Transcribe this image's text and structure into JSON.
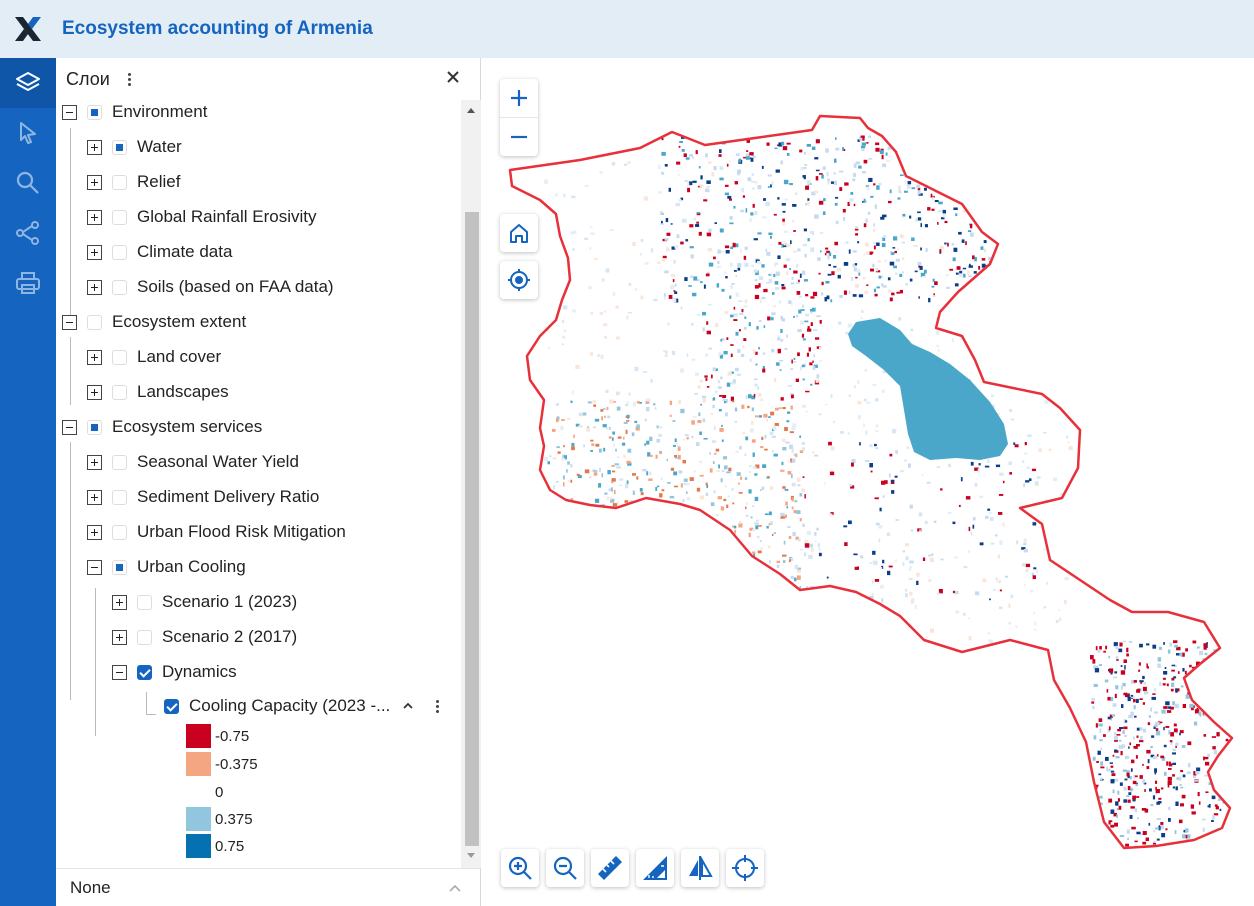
{
  "app": {
    "title": "Ecosystem accounting of Armenia"
  },
  "toolbar": {
    "items": [
      {
        "name": "layers",
        "active": true
      },
      {
        "name": "select",
        "active": false
      },
      {
        "name": "search",
        "active": false
      },
      {
        "name": "share",
        "active": false
      },
      {
        "name": "print",
        "active": false
      }
    ]
  },
  "panel": {
    "title": "Слои",
    "footer": "None",
    "tree": [
      {
        "label": "Environment",
        "level": 0,
        "expanded": true,
        "state": "partial"
      },
      {
        "label": "Water",
        "level": 1,
        "expanded": false,
        "state": "partial"
      },
      {
        "label": "Relief",
        "level": 1,
        "expanded": false,
        "state": "unchecked"
      },
      {
        "label": "Global Rainfall Erosivity",
        "level": 1,
        "expanded": false,
        "state": "unchecked"
      },
      {
        "label": "Climate data",
        "level": 1,
        "expanded": false,
        "state": "unchecked"
      },
      {
        "label": "Soils (based on FAA data)",
        "level": 1,
        "expanded": false,
        "state": "unchecked"
      },
      {
        "label": "Ecosystem extent",
        "level": 0,
        "expanded": true,
        "state": "unchecked"
      },
      {
        "label": "Land cover",
        "level": 1,
        "expanded": false,
        "state": "unchecked"
      },
      {
        "label": "Landscapes",
        "level": 1,
        "expanded": false,
        "state": "unchecked"
      },
      {
        "label": "Ecosystem services",
        "level": 0,
        "expanded": true,
        "state": "partial"
      },
      {
        "label": "Seasonal Water Yield",
        "level": 1,
        "expanded": false,
        "state": "unchecked"
      },
      {
        "label": "Sediment Delivery Ratio",
        "level": 1,
        "expanded": false,
        "state": "unchecked"
      },
      {
        "label": "Urban Flood Risk Mitigation",
        "level": 1,
        "expanded": false,
        "state": "unchecked"
      },
      {
        "label": "Urban Cooling",
        "level": 1,
        "expanded": true,
        "state": "partial"
      },
      {
        "label": "Scenario 1 (2023)",
        "level": 2,
        "expanded": false,
        "state": "unchecked"
      },
      {
        "label": "Scenario 2 (2017)",
        "level": 2,
        "expanded": false,
        "state": "unchecked"
      },
      {
        "label": "Dynamics",
        "level": 2,
        "expanded": true,
        "state": "checked"
      }
    ],
    "leaf": {
      "label": "Cooling Capacity (2023 -...",
      "state": "checked"
    },
    "legend": [
      {
        "label": "-0.75",
        "color": "#ca0020"
      },
      {
        "label": "-0.375",
        "color": "#f4a582"
      },
      {
        "label": "0",
        "color": "#ffffff"
      },
      {
        "label": "0.375",
        "color": "#92c5de"
      },
      {
        "label": "0.75",
        "color": "#0571b0"
      }
    ]
  },
  "map": {
    "buttons": [
      "zoom-in",
      "zoom-out",
      "home",
      "locate"
    ],
    "bottom_tools": [
      "zoom-in-tool",
      "zoom-out-tool",
      "measure-distance",
      "measure-area",
      "swipe-compare",
      "crosshair"
    ],
    "colors": {
      "border": "#e8303a",
      "lake": "#4ba7c9",
      "accent": "#1565c0"
    }
  }
}
